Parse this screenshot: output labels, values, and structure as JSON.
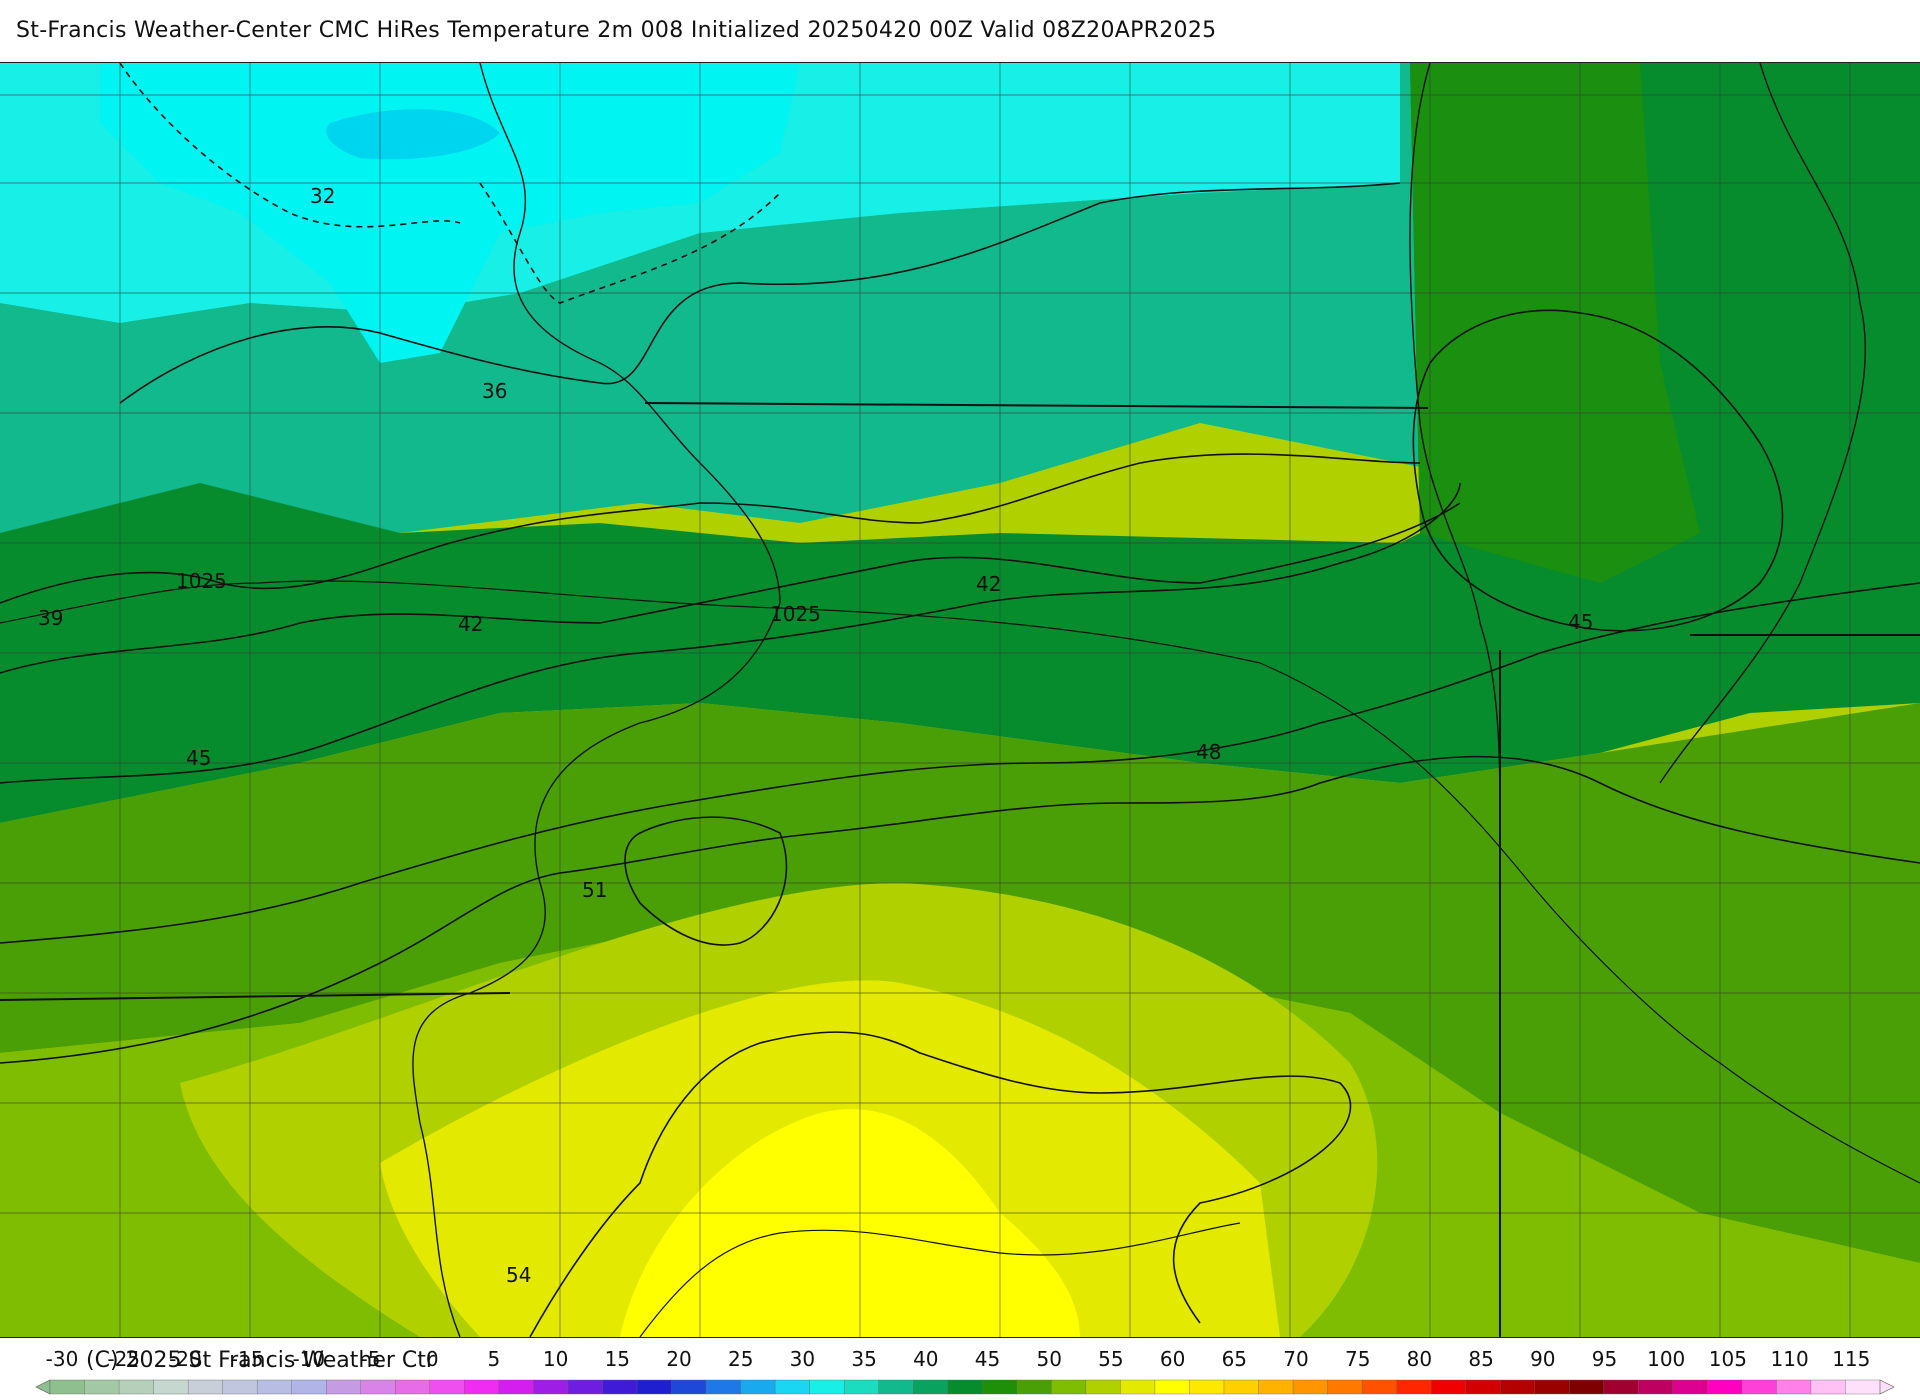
{
  "header": {
    "title": "St-Francis Weather-Center CMC HiRes Temperature 2m  008 Initialized 20250420 00Z Valid 08Z20APR2025"
  },
  "map": {
    "isotherm_labels": [
      "32",
      "36",
      "39",
      "42",
      "42",
      "45",
      "45",
      "48",
      "51",
      "54"
    ],
    "isobar_labels": [
      "1025",
      "1025"
    ]
  },
  "legend": {
    "ticks": [
      "-30",
      "-25",
      "-20",
      "-15",
      "-10",
      "-5",
      "0",
      "5",
      "10",
      "15",
      "20",
      "25",
      "30",
      "35",
      "40",
      "45",
      "50",
      "55",
      "60",
      "65",
      "70",
      "75",
      "80",
      "85",
      "90",
      "95",
      "100",
      "105",
      "110",
      "115"
    ],
    "colors": [
      "#8fbf8f",
      "#a3c8a6",
      "#b5cfbb",
      "#c6d7cf",
      "#c9cfd9",
      "#c1c6df",
      "#b8bde3",
      "#b0b4e6",
      "#c59be3",
      "#d983e8",
      "#e76ce8",
      "#f04fef",
      "#f12cf2",
      "#d41ef0",
      "#9f1ee5",
      "#6f1de0",
      "#3f1bd8",
      "#1f1fd0",
      "#1e49d8",
      "#1f78e8",
      "#19a9ee",
      "#1ad6f2",
      "#18efe6",
      "#1cdcbf",
      "#11b98c",
      "#0aa25f",
      "#068c2c",
      "#1f8f0a",
      "#4b9f06",
      "#7fbd02",
      "#b1d000",
      "#e3ea00",
      "#ffff00",
      "#ffe800",
      "#ffcf00",
      "#ffb300",
      "#ff9500",
      "#ff7800",
      "#ff5200",
      "#ff2600",
      "#f00000",
      "#d20000",
      "#b30000",
      "#990000",
      "#7f0000",
      "#9f0030",
      "#be0060",
      "#dc0090",
      "#ff00c0",
      "#ff40d8",
      "#ff80e8",
      "#ffc0f4",
      "#ffe0fa"
    ]
  },
  "footer": {
    "copyright": "(C) 2025 St Francis Weather Ctr"
  }
}
